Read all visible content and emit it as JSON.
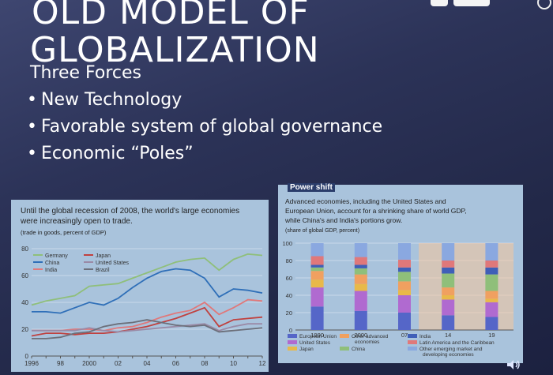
{
  "slide": {
    "title_line1": "OLD MODEL OF",
    "title_line2": "GLOBALIZATION",
    "subheading": "Three Forces",
    "bullets": [
      "New Technology",
      "Favorable system of global governance",
      "Economic “Poles”"
    ],
    "bullet_char": "•"
  },
  "colors": {
    "background": "#2c3358",
    "panel": "#a9c3dc",
    "text": "#ffffff"
  },
  "chart_data": [
    {
      "type": "line",
      "title": "Until the global recession of 2008, the world's large economies were increasingly open to trade.",
      "title_line1": "Until the global recession of 2008, the world's large economies",
      "title_line2": "were increasingly open to trade.",
      "ylabel": "(trade in goods, percent of GDP)",
      "x": [
        1996,
        1997,
        1998,
        1999,
        2000,
        2001,
        2002,
        2003,
        2004,
        2005,
        2006,
        2007,
        2008,
        2009,
        2010,
        2011,
        2012
      ],
      "xtick_labels": [
        "1996",
        "98",
        "2000",
        "02",
        "04",
        "06",
        "08",
        "10",
        "12"
      ],
      "xtick_values": [
        1996,
        1998,
        2000,
        2002,
        2004,
        2006,
        2008,
        2010,
        2012
      ],
      "ytick_labels": [
        "0",
        "20",
        "40",
        "60",
        "80"
      ],
      "ylim": [
        0,
        80
      ],
      "series": [
        {
          "name": "Germany",
          "color": "#8fbf7a",
          "values": [
            38,
            41,
            43,
            45,
            52,
            53,
            54,
            58,
            62,
            66,
            70,
            72,
            73,
            64,
            72,
            76,
            75
          ]
        },
        {
          "name": "China",
          "color": "#2f6fb8",
          "values": [
            33,
            33,
            32,
            36,
            40,
            38,
            43,
            51,
            58,
            63,
            65,
            64,
            58,
            44,
            50,
            49,
            47
          ]
        },
        {
          "name": "India",
          "color": "#e0787a",
          "values": [
            19,
            19,
            19,
            20,
            20,
            19,
            21,
            22,
            25,
            29,
            32,
            34,
            40,
            31,
            36,
            42,
            41
          ]
        },
        {
          "name": "Japan",
          "color": "#c0413f",
          "values": [
            15,
            17,
            17,
            16,
            17,
            17,
            18,
            20,
            22,
            25,
            28,
            32,
            36,
            22,
            27,
            28,
            29
          ]
        },
        {
          "name": "United States",
          "color": "#9a8aa6",
          "values": [
            19,
            19,
            19,
            19,
            21,
            19,
            18,
            19,
            20,
            21,
            22,
            23,
            24,
            19,
            22,
            24,
            24
          ]
        },
        {
          "name": "Brazil",
          "color": "#6c6f7a",
          "values": [
            13,
            13,
            14,
            17,
            18,
            22,
            24,
            25,
            27,
            25,
            23,
            22,
            23,
            18,
            19,
            20,
            21
          ]
        }
      ]
    },
    {
      "type": "bar",
      "stacked": true,
      "header": "Power shift",
      "title": "Advanced economies, including the United States and European Union, account for a shrinking share of world GDP, while China's and India's portions grow.",
      "title_line1": "Advanced economies, including the United States and",
      "title_line2": "European Union, account for a shrinking share of world GDP,",
      "title_line3": "while China's and India's portions grow.",
      "ylabel": "(share of global GDP, percent)",
      "categories": [
        "1990",
        "2000",
        "07",
        "14",
        "19"
      ],
      "ylim": [
        0,
        100
      ],
      "ytick_labels": [
        "0",
        "20",
        "40",
        "60",
        "80",
        "100"
      ],
      "series": [
        {
          "name": "European Union",
          "color": "#5566c8",
          "values": [
            27,
            22,
            20,
            17,
            15
          ]
        },
        {
          "name": "United States",
          "color": "#b06ad0",
          "values": [
            22,
            23,
            20,
            18,
            17
          ]
        },
        {
          "name": "Japan",
          "color": "#e8b94a",
          "values": [
            9,
            8,
            6,
            5,
            4
          ]
        },
        {
          "name": "Other advanced economies",
          "color": "#f0a060",
          "values": [
            10,
            11,
            10,
            9,
            9
          ]
        },
        {
          "name": "China",
          "color": "#8fbf7a",
          "values": [
            4,
            7,
            11,
            16,
            19
          ]
        },
        {
          "name": "India",
          "color": "#3f5fb8",
          "values": [
            3,
            4,
            5,
            7,
            8
          ]
        },
        {
          "name": "Latin America and the Caribbean",
          "color": "#e0787a",
          "values": [
            10,
            9,
            9,
            8,
            8
          ]
        },
        {
          "name": "Other emerging market and developing economies",
          "color": "#8aa8e0",
          "values": [
            15,
            16,
            19,
            20,
            20
          ]
        }
      ],
      "legend_labels": [
        "European Union",
        "Other advanced",
        "economies",
        "United States",
        "Japan",
        "China",
        "India",
        "Latin America and the Caribbean",
        "Other emerging market and",
        "developing economies"
      ]
    }
  ]
}
